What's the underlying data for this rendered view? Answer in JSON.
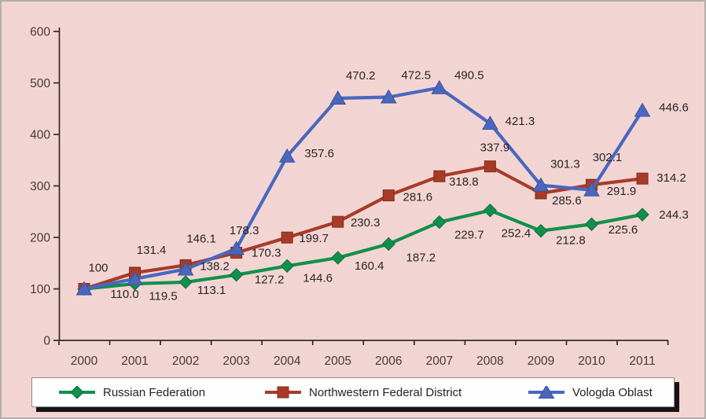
{
  "chart_data": {
    "type": "line",
    "title": "",
    "xlabel": "",
    "ylabel": "",
    "categories": [
      "2000",
      "2001",
      "2002",
      "2003",
      "2004",
      "2005",
      "2006",
      "2007",
      "2008",
      "2009",
      "2010",
      "2011"
    ],
    "ylim": [
      0,
      600
    ],
    "yticks": [
      0,
      100,
      200,
      300,
      400,
      500,
      600
    ],
    "grid": false,
    "legend_position": "bottom",
    "background_color": "#f2d5d3",
    "axis_color": "#2f2a2b",
    "tick_label_color": "#4a363c",
    "data_label_color": "#2b2326",
    "series": [
      {
        "name": "Russian Federation",
        "color": "#11904c",
        "marker_edge": "#0c6e3b",
        "marker": "diamond",
        "values": [
          100,
          110.0,
          113.1,
          127.2,
          144.6,
          160.4,
          187.2,
          229.7,
          252.4,
          212.8,
          225.6,
          244.3
        ],
        "labels": [
          "",
          "110.0",
          "113.1",
          "127.2",
          "144.6",
          "160.4",
          "187.2",
          "229.7",
          "252.4",
          "212.8",
          "225.6",
          "244.3"
        ],
        "label_offsets": [
          [
            0,
            0
          ],
          [
            -13,
            13
          ],
          [
            33,
            10
          ],
          [
            42,
            6
          ],
          [
            39,
            15
          ],
          [
            40,
            10
          ],
          [
            41,
            17
          ],
          [
            38,
            16
          ],
          [
            33,
            29
          ],
          [
            38,
            12
          ],
          [
            40,
            7
          ],
          [
            40,
            0
          ]
        ]
      },
      {
        "name": "Northwestern Federal District",
        "color": "#a83b28",
        "marker_edge": "#822c1c",
        "marker": "square",
        "values": [
          100,
          131.4,
          146.1,
          170.3,
          199.7,
          230.3,
          281.6,
          318.8,
          337.9,
          285.6,
          302.1,
          314.2
        ],
        "labels": [
          "",
          "131.4",
          "146.1",
          "170.3",
          "199.7",
          "230.3",
          "281.6",
          "318.8",
          "337.9",
          "285.6",
          "302.1",
          "314.2"
        ],
        "label_offsets": [
          [
            0,
            0
          ],
          [
            21,
            -29
          ],
          [
            20,
            -34
          ],
          [
            38,
            0
          ],
          [
            34,
            1
          ],
          [
            35,
            1
          ],
          [
            37,
            2
          ],
          [
            31,
            7
          ],
          [
            6,
            -24
          ],
          [
            33,
            9
          ],
          [
            20,
            -35
          ],
          [
            37,
            -1
          ]
        ]
      },
      {
        "name": "Vologda Oblast",
        "color": "#4a67bd",
        "marker_edge": "#3a53a0",
        "marker": "triangle",
        "values": [
          100,
          119.5,
          138.2,
          178.3,
          357.6,
          470.2,
          472.5,
          490.5,
          421.3,
          301.3,
          291.9,
          446.6
        ],
        "labels": [
          "100",
          "119.5",
          "138.2",
          "178.3",
          "357.6",
          "470.2",
          "472.5",
          "490.5",
          "421.3",
          "301.3",
          "291.9",
          "446.6"
        ],
        "label_offsets": [
          [
            18,
            -27
          ],
          [
            36,
            22
          ],
          [
            37,
            -4
          ],
          [
            10,
            -23
          ],
          [
            41,
            -4
          ],
          [
            29,
            -29
          ],
          [
            35,
            -28
          ],
          [
            38,
            -16
          ],
          [
            38,
            -3
          ],
          [
            31,
            -27
          ],
          [
            38,
            1
          ],
          [
            40,
            -4
          ]
        ]
      }
    ]
  }
}
